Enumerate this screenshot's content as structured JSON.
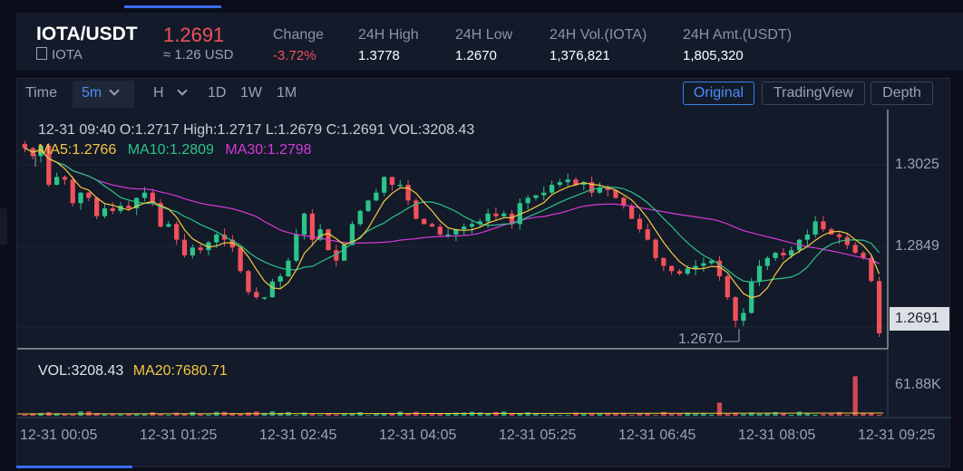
{
  "header": {
    "pair": "IOTA/USDT",
    "coin": "IOTA",
    "price": "1.2691",
    "price_usd": "≈ 1.26 USD",
    "stats": [
      {
        "label": "Change",
        "value": "-3.72%"
      },
      {
        "label": "24H High",
        "value": "1.3778"
      },
      {
        "label": "24H Low",
        "value": "1.2670"
      },
      {
        "label": "24H Vol.(IOTA)",
        "value": "1,376,821"
      },
      {
        "label": "24H Amt.(USDT)",
        "value": "1,805,320"
      }
    ]
  },
  "toolbar": {
    "time_label": "Time",
    "interval": "5m",
    "hour": "H",
    "d": "1D",
    "w": "1W",
    "m": "1M",
    "views": [
      "Original",
      "TradingView",
      "Depth"
    ],
    "active_view": "Original"
  },
  "legend": {
    "ohlc": "12-31 09:40   O:1.2717  High:1.2717   L:1.2679   C:1.2691   VOL:3208.43",
    "ma5": "MA5:1.2766",
    "ma10": "MA10:1.2809",
    "ma30": "MA30:1.2798",
    "vol": "VOL:3208.43",
    "ma20": "MA20:7680.71"
  },
  "colors": {
    "up": "#2bc48a",
    "down": "#f0515b",
    "ma5": "#f5c842",
    "ma10": "#2bc48a",
    "ma30": "#d63ad8"
  },
  "chart_data": {
    "type": "candlestick",
    "symbol": "IOTA/USDT",
    "interval": "5m",
    "price_axis_ticks": [
      "1.3025",
      "1.2849"
    ],
    "current_price": "1.2691",
    "low_marker": "1.2670",
    "volume_axis_tick": "61.88K",
    "x_tick_labels": [
      "12-31 00:05",
      "12-31 01:25",
      "12-31 02:45",
      "12-31 04:05",
      "12-31 05:25",
      "12-31 06:45",
      "12-31 08:05",
      "12-31 09:25"
    ],
    "last_candle": {
      "time": "12-31 09:40",
      "open": 1.2717,
      "high": 1.2717,
      "low": 1.2679,
      "close": 1.2691,
      "volume": 3208.43
    },
    "closes": [
      1.3045,
      1.303,
      1.305,
      1.2975,
      1.299,
      1.2985,
      1.294,
      1.296,
      1.295,
      1.2915,
      1.293,
      1.2925,
      1.2935,
      1.293,
      1.295,
      1.296,
      1.294,
      1.2895,
      1.29,
      1.287,
      1.284,
      1.2855,
      1.285,
      1.2865,
      1.288,
      1.287,
      1.2855,
      1.281,
      1.277,
      1.276,
      1.276,
      1.279,
      1.28,
      1.283,
      1.288,
      1.292,
      1.287,
      1.289,
      1.285,
      1.283,
      1.286,
      1.29,
      1.2925,
      1.2945,
      1.296,
      1.299,
      1.2975,
      1.2975,
      1.2945,
      1.291,
      1.29,
      1.2895,
      1.288,
      1.288,
      1.289,
      1.2895,
      1.29,
      1.2905,
      1.292,
      1.2915,
      1.292,
      1.29,
      1.294,
      1.295,
      1.2955,
      1.296,
      1.2975,
      1.298,
      1.2985,
      1.2975,
      1.298,
      1.296,
      1.297,
      1.2965,
      1.295,
      1.2935,
      1.291,
      1.289,
      1.287,
      1.2835,
      1.282,
      1.281,
      1.2805,
      1.2815,
      1.282,
      1.2825,
      1.283,
      1.28,
      1.276,
      1.2715,
      1.273,
      1.279,
      1.282,
      1.2835,
      1.2845,
      1.284,
      1.285,
      1.287,
      1.288,
      1.2905,
      1.289,
      1.288,
      1.2875,
      1.286,
      1.2845,
      1.2835,
      1.2791,
      1.2691
    ],
    "volume_axis_max": 61880
  }
}
